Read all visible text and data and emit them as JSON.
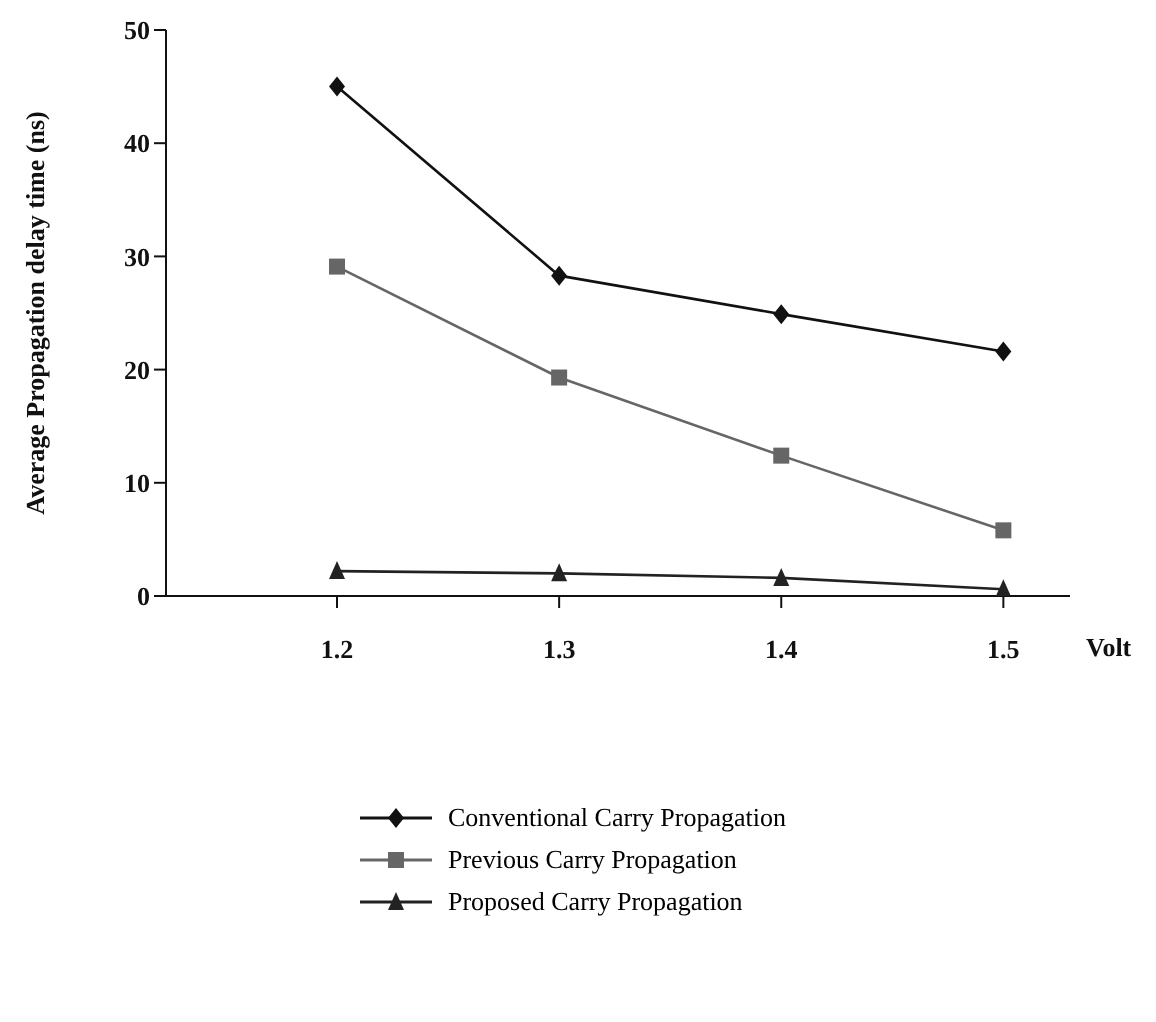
{
  "chart_data": {
    "type": "line",
    "xlabel": "Volt",
    "ylabel": "Average Propagation delay time (ns)",
    "categories": [
      "1.2",
      "1.3",
      "1.4",
      "1.5"
    ],
    "ylim": [
      0,
      50
    ],
    "yticks": [
      0,
      10,
      20,
      30,
      40,
      50
    ],
    "grid": false,
    "legend": "bottom",
    "series": [
      {
        "name": "Conventional Carry Propagation",
        "color": "#111111",
        "marker": "diamond",
        "values": [
          45,
          28.3,
          24.9,
          21.6
        ]
      },
      {
        "name": "Previous Carry Propagation",
        "color": "#666666",
        "marker": "square",
        "values": [
          29.1,
          19.3,
          12.4,
          5.8
        ]
      },
      {
        "name": "Proposed Carry Propagation",
        "color": "#222222",
        "marker": "triangle",
        "values": [
          2.2,
          2,
          1.6,
          0.6
        ]
      }
    ]
  }
}
